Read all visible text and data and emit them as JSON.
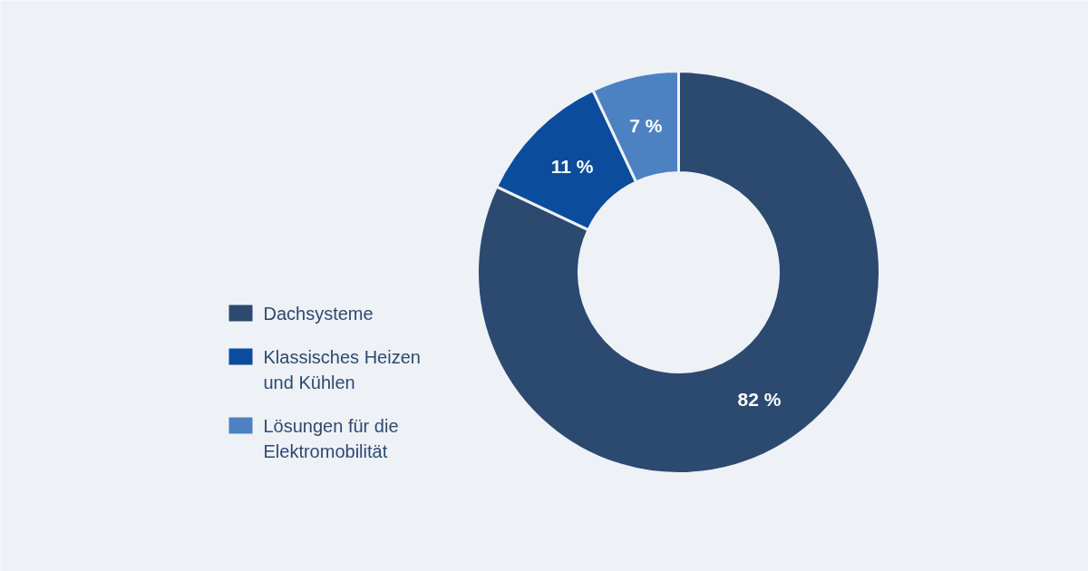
{
  "chart_data": {
    "type": "donut",
    "categories": [
      "Dachsysteme",
      "Klassisches Heizen und Kühlen",
      "Lösungen für die Elektromobilität"
    ],
    "values": [
      82,
      11,
      7
    ],
    "colors": [
      "#2c4a70",
      "#0b4c9c",
      "#4d82c2"
    ],
    "value_labels": [
      "82 %",
      "11 %",
      "7 %"
    ],
    "legend": "left"
  }
}
